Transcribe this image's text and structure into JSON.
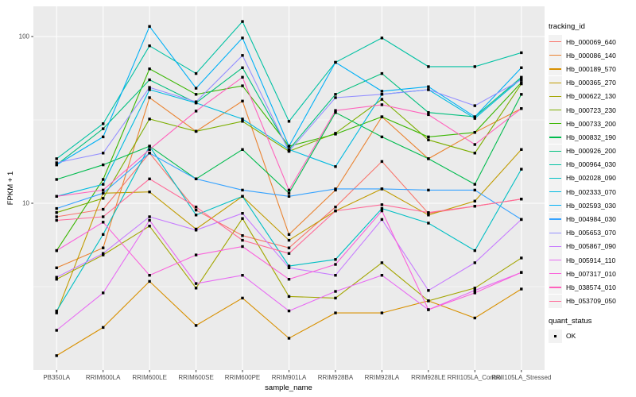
{
  "chart_data": {
    "type": "line",
    "xlabel": "sample_name",
    "ylabel": "FPKM + 1",
    "y_scale": "log10",
    "y_ticks": [
      10,
      100
    ],
    "y_tick_labels": [
      "10",
      "100"
    ],
    "y_minor_gridlines": [
      3.162,
      31.62
    ],
    "ylim": [
      1.0,
      151
    ],
    "grid": "on",
    "legend_position": "right",
    "panel_bg": "#ebebeb",
    "grid_color": "#ffffff",
    "point_color": "#000000",
    "axis_text_color": "#4d4d4d",
    "tick_color": "#333333",
    "categories": [
      "PB350LA",
      "RRIM600LA",
      "RRIM600LE",
      "RRIM600SE",
      "RRIM600PE",
      "RRIM901LA",
      "RRIM928BA",
      "RRIM928LA",
      "RRIM928LE",
      "RRII105LA_Control",
      "RRII105LA_Stressed"
    ],
    "legend_title": "tracking_id",
    "quant_status_title": "quant_status",
    "quant_status_items": [
      {
        "label": "OK",
        "marker": "black-square"
      }
    ],
    "series": [
      {
        "name": "Hb_000069_640",
        "color": "#F8766D",
        "values": [
          8.3,
          9.2,
          20,
          9.1,
          6.4,
          5.4,
          9.5,
          17.8,
          8.7,
          9.6,
          10.6
        ]
      },
      {
        "name": "Hb_000086_140",
        "color": "#EA8331",
        "values": [
          4.1,
          5.4,
          43,
          27,
          41,
          6.5,
          12,
          33,
          18.5,
          26.6,
          37
        ]
      },
      {
        "name": "Hb_000189_570",
        "color": "#D89000",
        "values": [
          1.22,
          1.8,
          3.4,
          1.85,
          2.7,
          1.55,
          2.2,
          2.2,
          2.6,
          2.05,
          3.06
        ]
      },
      {
        "name": "Hb_000365_270",
        "color": "#C09B00",
        "values": [
          2.2,
          11.5,
          11.7,
          7.0,
          11.0,
          6.0,
          9.0,
          12.2,
          8.5,
          10.3,
          21
        ]
      },
      {
        "name": "Hb_000622_130",
        "color": "#A3A500",
        "values": [
          3.5,
          4.9,
          7.3,
          3.1,
          8.1,
          2.76,
          2.7,
          4.4,
          2.6,
          3.1,
          4.7
        ]
      },
      {
        "name": "Hb_000723_230",
        "color": "#7CAE00",
        "values": [
          8.8,
          10.7,
          32,
          27,
          31,
          20.5,
          26.3,
          42,
          24,
          20,
          52
        ]
      },
      {
        "name": "Hb_000733_200",
        "color": "#39B600",
        "values": [
          5.2,
          13.9,
          64,
          45,
          50.6,
          22,
          26,
          33,
          25,
          26.6,
          53
        ]
      },
      {
        "name": "Hb_000832_190",
        "color": "#00BB4E",
        "values": [
          13.9,
          17,
          22,
          14,
          21,
          11.5,
          35,
          25,
          18.5,
          13,
          45
        ]
      },
      {
        "name": "Hb_000926_200",
        "color": "#00BF7D",
        "values": [
          17,
          28,
          55,
          40,
          65,
          21,
          45,
          60,
          35,
          33,
          57
        ]
      },
      {
        "name": "Hb_000964_030",
        "color": "#00C1A3",
        "values": [
          18.5,
          30,
          88,
          60,
          123,
          31,
          70,
          98,
          66,
          66,
          80
        ]
      },
      {
        "name": "Hb_002028_090",
        "color": "#00BFC4",
        "values": [
          2.26,
          6.5,
          22,
          8.5,
          11,
          4.2,
          4.6,
          9.3,
          7.6,
          5.2,
          16
        ]
      },
      {
        "name": "Hb_002333_070",
        "color": "#00BAE0",
        "values": [
          11,
          13,
          48,
          40,
          32,
          21,
          16.6,
          45,
          48,
          32.3,
          56
        ]
      },
      {
        "name": "Hb_002593_030",
        "color": "#00B0F6",
        "values": [
          17,
          25,
          115,
          49,
          98,
          22,
          70,
          47,
          50,
          33,
          65
        ]
      },
      {
        "name": "Hb_004984_030",
        "color": "#35A2FF",
        "values": [
          9.3,
          11.5,
          20,
          14,
          12,
          11,
          12.2,
          12.2,
          12.0,
          12.0,
          8.0
        ]
      },
      {
        "name": "Hb_005653_070",
        "color": "#9590FF",
        "values": [
          17.5,
          20,
          49.5,
          40.6,
          77,
          20.5,
          43,
          45,
          48,
          38.5,
          55
        ]
      },
      {
        "name": "Hb_005867_090",
        "color": "#C77CFF",
        "values": [
          3.6,
          5.0,
          8.3,
          6.9,
          8.7,
          4.1,
          3.7,
          8.0,
          3.0,
          4.4,
          8.0
        ]
      },
      {
        "name": "Hb_005914_110",
        "color": "#E76BF3",
        "values": [
          1.73,
          2.9,
          7.9,
          3.3,
          3.7,
          2.26,
          2.96,
          3.7,
          2.3,
          3.0,
          3.85
        ]
      },
      {
        "name": "Hb_007317_010",
        "color": "#FA62DB",
        "values": [
          5.2,
          7.7,
          3.7,
          4.9,
          5.5,
          3.5,
          4.3,
          9.0,
          2.3,
          2.9,
          3.85
        ]
      },
      {
        "name": "Hb_038574_010",
        "color": "#FF62BC",
        "values": [
          11,
          12,
          21,
          35.7,
          57,
          12,
          36,
          39,
          34,
          22.5,
          37
        ]
      },
      {
        "name": "Hb_053709_050",
        "color": "#FF6A98",
        "values": [
          7.9,
          8.3,
          14,
          9.5,
          6.0,
          5.0,
          9.0,
          9.8,
          8.8,
          9.6,
          10.6
        ]
      }
    ]
  }
}
